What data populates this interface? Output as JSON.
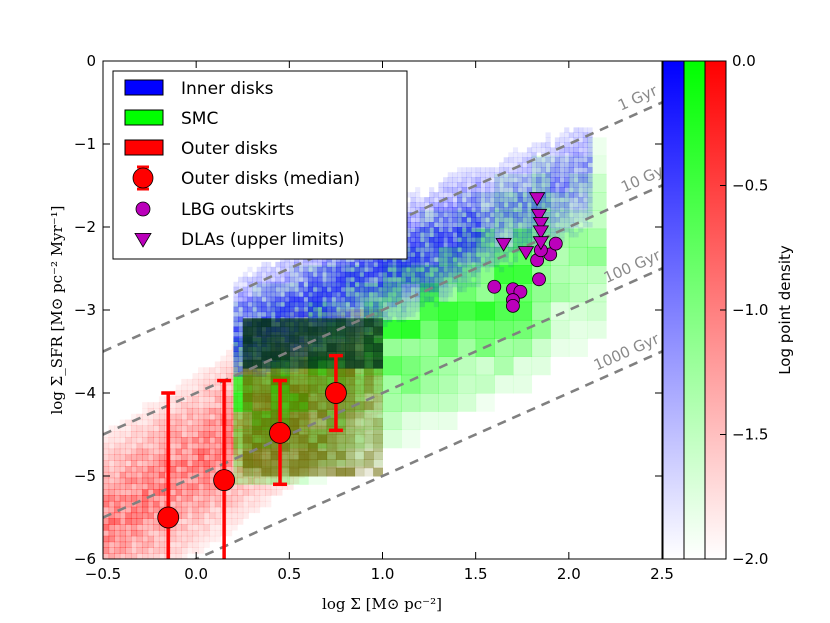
{
  "chart_data": {
    "type": "scatter",
    "xlabel": "log Σ [M⊙ pc⁻²]",
    "ylabel": "log Σ_SFR [M⊙ pc⁻² Myr⁻¹]",
    "xlim": [
      -0.5,
      2.5
    ],
    "ylim": [
      -6,
      0
    ],
    "x_ticks": [
      "−0.5",
      "0.0",
      "0.5",
      "1.0",
      "1.5",
      "2.0",
      "2.5"
    ],
    "y_ticks": [
      "−6",
      "−5",
      "−4",
      "−3",
      "−2",
      "−1",
      "0"
    ],
    "depletion_time_lines": [
      {
        "label": "1 Gyr",
        "intercept": -3.0
      },
      {
        "label": "10 Gyr",
        "intercept": -4.0
      },
      {
        "label": "100 Gyr",
        "intercept": -5.0
      },
      {
        "label": "1000 Gyr",
        "intercept": -6.0
      }
    ],
    "density_regions": [
      {
        "name": "Inner disks",
        "color": "#0000ff"
      },
      {
        "name": "SMC",
        "color": "#00ff00"
      },
      {
        "name": "Outer disks",
        "color": "#ff0000"
      }
    ],
    "outer_disks_median": [
      {
        "x": -0.15,
        "y": -5.5,
        "ylo": -6.0,
        "yhi": -4.0
      },
      {
        "x": 0.15,
        "y": -5.05,
        "ylo": -6.0,
        "yhi": -3.85
      },
      {
        "x": 0.45,
        "y": -4.48,
        "ylo": -5.1,
        "yhi": -3.85
      },
      {
        "x": 0.75,
        "y": -4.0,
        "ylo": -4.45,
        "yhi": -3.55
      }
    ],
    "lbg_outskirts": [
      {
        "x": 1.6,
        "y": -2.72
      },
      {
        "x": 1.7,
        "y": -2.75
      },
      {
        "x": 1.74,
        "y": -2.78
      },
      {
        "x": 1.7,
        "y": -2.88
      },
      {
        "x": 1.7,
        "y": -2.95
      },
      {
        "x": 1.84,
        "y": -2.63
      },
      {
        "x": 1.83,
        "y": -2.4
      },
      {
        "x": 1.9,
        "y": -2.33
      },
      {
        "x": 1.93,
        "y": -2.2
      },
      {
        "x": 1.85,
        "y": -2.28
      }
    ],
    "dlas_upper_limits": [
      {
        "x": 1.65,
        "y": -2.2
      },
      {
        "x": 1.77,
        "y": -2.3
      },
      {
        "x": 1.83,
        "y": -1.65
      },
      {
        "x": 1.84,
        "y": -1.85
      },
      {
        "x": 1.85,
        "y": -1.95
      },
      {
        "x": 1.85,
        "y": -2.05
      },
      {
        "x": 1.85,
        "y": -2.18
      }
    ],
    "legend": [
      {
        "label": "Inner disks",
        "kind": "patch",
        "color": "#0000ff"
      },
      {
        "label": "SMC",
        "kind": "patch",
        "color": "#00ff00"
      },
      {
        "label": "Outer disks",
        "kind": "patch",
        "color": "#ff0000"
      },
      {
        "label": "Outer disks (median)",
        "kind": "errorbar",
        "color": "#ff0000"
      },
      {
        "label": "LBG outskirts",
        "kind": "circle",
        "color": "#bb00bb"
      },
      {
        "label": "DLAs (upper limits)",
        "kind": "triangle",
        "color": "#bb00bb"
      }
    ],
    "colorbar": {
      "label": "Log point density",
      "range": [
        -2.0,
        0.0
      ],
      "ticks": [
        "0.0",
        "−0.5",
        "−1.0",
        "−1.5",
        "−2.0"
      ],
      "colors": [
        "#0000ff",
        "#00ff00",
        "#ff0000"
      ]
    }
  }
}
